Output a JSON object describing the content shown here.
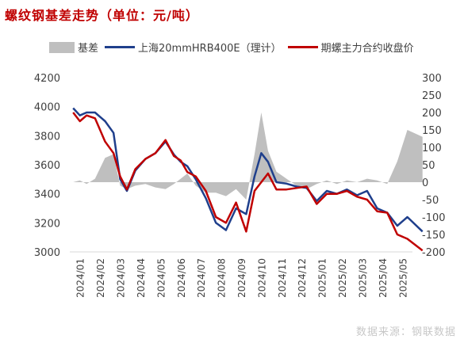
{
  "title": "螺纹钢基差走势（单位：元/吨）",
  "source": "数据来源：钢联数据",
  "colors": {
    "basis": "#bfbfbf",
    "spot": "#1f3f8c",
    "futures": "#c00000",
    "title": "#c00000"
  },
  "chart_data": {
    "type": "line",
    "title": "螺纹钢基差走势（单位：元/吨）",
    "x_ticks": [
      "2024/01",
      "2024/02",
      "2024/03",
      "2024/04",
      "2024/05",
      "2024/06",
      "2024/07",
      "2024/08",
      "2024/09",
      "2024/10",
      "2024/11",
      "2024/12",
      "2025/01",
      "2025/02",
      "2025/03",
      "2025/04",
      "2025/05"
    ],
    "x_range": [
      "2024/01",
      "2025/06"
    ],
    "y_left": {
      "min": 3000,
      "max": 4200,
      "ticks": [
        3000,
        3200,
        3400,
        3600,
        3800,
        4000,
        4200
      ]
    },
    "y_right": {
      "min": -200,
      "max": 300,
      "ticks": [
        -200,
        -150,
        -100,
        -50,
        0,
        50,
        100,
        150,
        200,
        250,
        300
      ]
    },
    "grid": false,
    "legend_position": "top",
    "x": [
      "2024/01",
      "2024/01",
      "2024/01",
      "2024/02",
      "2024/02",
      "2024/03",
      "2024/03",
      "2024/03",
      "2024/04",
      "2024/04",
      "2024/05",
      "2024/05",
      "2024/06",
      "2024/06",
      "2024/06",
      "2024/07",
      "2024/07",
      "2024/08",
      "2024/08",
      "2024/09",
      "2024/09",
      "2024/10",
      "2024/10",
      "2024/10",
      "2024/11",
      "2024/11",
      "2024/12",
      "2024/12",
      "2025/01",
      "2025/01",
      "2025/02",
      "2025/02",
      "2025/03",
      "2025/03",
      "2025/04",
      "2025/04",
      "2025/05",
      "2025/05",
      "2025/06"
    ],
    "series": [
      {
        "name": "基差",
        "axis": "right",
        "style": "area",
        "values": [
          0,
          5,
          -5,
          10,
          70,
          80,
          -10,
          -20,
          -10,
          -5,
          -15,
          -20,
          -5,
          10,
          25,
          -10,
          -30,
          -30,
          -40,
          -20,
          -50,
          80,
          200,
          90,
          30,
          10,
          -10,
          -20,
          -5,
          5,
          -5,
          5,
          0,
          10,
          5,
          -5,
          60,
          150,
          130
        ]
      },
      {
        "name": "上海20mmHRB400E（理计）",
        "axis": "left",
        "style": "line",
        "values": [
          3990,
          3940,
          3960,
          3960,
          3900,
          3820,
          3500,
          3420,
          3560,
          3640,
          3680,
          3760,
          3670,
          3620,
          3590,
          3500,
          3370,
          3200,
          3150,
          3300,
          3260,
          3520,
          3680,
          3620,
          3480,
          3470,
          3450,
          3440,
          3350,
          3420,
          3400,
          3430,
          3390,
          3420,
          3300,
          3270,
          3180,
          3240,
          3140
        ]
      },
      {
        "name": "期螺主力合约收盘价",
        "axis": "left",
        "style": "line",
        "values": [
          3960,
          3900,
          3940,
          3920,
          3760,
          3680,
          3520,
          3430,
          3570,
          3640,
          3680,
          3770,
          3660,
          3630,
          3550,
          3520,
          3420,
          3240,
          3200,
          3340,
          3140,
          3420,
          3480,
          3540,
          3430,
          3430,
          3440,
          3450,
          3330,
          3400,
          3400,
          3420,
          3380,
          3360,
          3280,
          3270,
          3120,
          3090,
          3010
        ]
      }
    ]
  }
}
